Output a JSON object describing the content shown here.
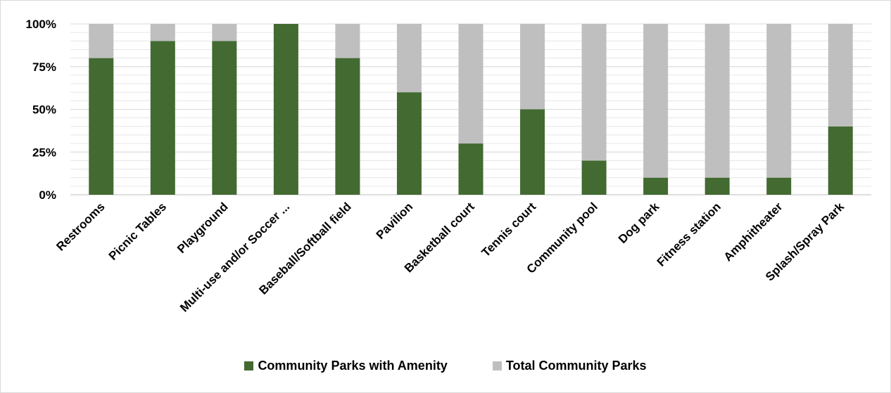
{
  "chart_data": {
    "type": "bar",
    "stacked": true,
    "categories": [
      "Restrooms",
      "Picnic Tables",
      "Playground",
      "Multi-use and/or Soccer ...",
      "Baseball/Softball field",
      "Pavilion",
      "Basketball court",
      "Tennis court",
      "Community pool",
      "Dog park",
      "Fitness station",
      "Amphitheater",
      "Splash/Spray Park"
    ],
    "series": [
      {
        "name": "Community Parks with Amenity",
        "color": "#426a31",
        "values": [
          80,
          90,
          90,
          100,
          80,
          60,
          30,
          50,
          20,
          10,
          10,
          10,
          40
        ]
      },
      {
        "name": "Total Community Parks",
        "color": "#bfbfbf",
        "values": [
          20,
          10,
          10,
          0,
          20,
          40,
          70,
          50,
          80,
          90,
          90,
          90,
          60
        ]
      }
    ],
    "ylim": [
      0,
      100
    ],
    "yticks": [
      0,
      25,
      50,
      75,
      100
    ],
    "ytick_labels": [
      "0%",
      "25%",
      "50%",
      "75%",
      "100%"
    ],
    "grid": true,
    "legend_position": "bottom",
    "title": "",
    "xlabel": "",
    "ylabel": ""
  }
}
